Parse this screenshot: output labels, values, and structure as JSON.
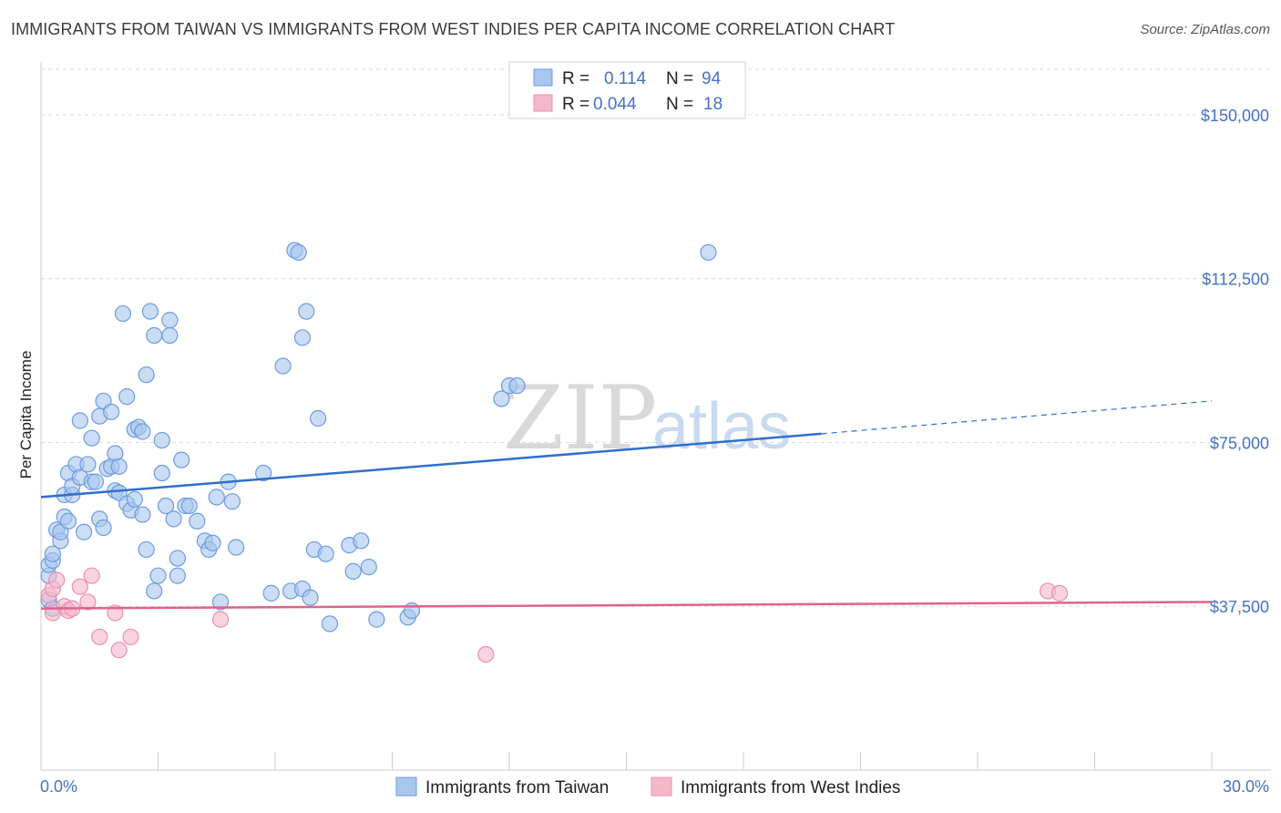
{
  "title": "IMMIGRANTS FROM TAIWAN VS IMMIGRANTS FROM WEST INDIES PER CAPITA INCOME CORRELATION CHART",
  "source": "Source: ZipAtlas.com",
  "watermark": {
    "zip": "ZIP",
    "atlas": "atlas"
  },
  "colors": {
    "taiwan_fill": "#a9c6ee",
    "taiwan_stroke": "#6c9be0",
    "taiwan_line": "#2e6fcf",
    "westindies_fill": "#f5b8cb",
    "westindies_stroke": "#ec8fad",
    "westindies_line": "#e0628a",
    "tick_text": "#4472c4",
    "grid": "#dcdcdc"
  },
  "legend": {
    "rows": [
      {
        "r_label": "R =",
        "r_value": "0.114",
        "n_label": "N =",
        "n_value": "94"
      },
      {
        "r_label": "R =",
        "r_value": "0.044",
        "n_label": "N =",
        "n_value": "18"
      }
    ]
  },
  "chart_data": {
    "type": "scatter",
    "title": "IMMIGRANTS FROM TAIWAN VS IMMIGRANTS FROM WEST INDIES PER CAPITA INCOME CORRELATION CHART",
    "xlabel": "",
    "ylabel": "Per Capita Income",
    "xlim": [
      0,
      30
    ],
    "ylim": [
      0,
      160000
    ],
    "x_tick_labels": [
      "0.0%",
      "30.0%"
    ],
    "y_ticks": [
      37500,
      75000,
      112500,
      150000
    ],
    "y_tick_labels": [
      "$37,500",
      "$75,000",
      "$112,500",
      "$150,000"
    ],
    "grid": "horizontal dashed",
    "legend_position": "top-center",
    "series": [
      {
        "name": "Immigrants from Taiwan",
        "r": 0.114,
        "n": 94,
        "trend": {
          "x0": 0,
          "y0": 62500,
          "x1": 20,
          "y1": 77000,
          "dashed_to_x": 30,
          "dashed_to_y": 84500
        },
        "points": [
          [
            0.2,
            39000
          ],
          [
            0.2,
            44500
          ],
          [
            0.2,
            47000
          ],
          [
            0.3,
            48000
          ],
          [
            0.3,
            49500
          ],
          [
            0.3,
            37000
          ],
          [
            0.4,
            55000
          ],
          [
            0.5,
            52500
          ],
          [
            0.5,
            54500
          ],
          [
            0.6,
            58000
          ],
          [
            0.6,
            63000
          ],
          [
            0.7,
            68000
          ],
          [
            0.7,
            57000
          ],
          [
            0.8,
            63000
          ],
          [
            0.8,
            65000
          ],
          [
            0.9,
            70000
          ],
          [
            1.0,
            67000
          ],
          [
            1.0,
            80000
          ],
          [
            1.1,
            54500
          ],
          [
            1.2,
            70000
          ],
          [
            1.3,
            76000
          ],
          [
            1.3,
            66000
          ],
          [
            1.4,
            66000
          ],
          [
            1.5,
            57500
          ],
          [
            1.5,
            81000
          ],
          [
            1.6,
            55500
          ],
          [
            1.6,
            84500
          ],
          [
            1.7,
            69000
          ],
          [
            1.8,
            82000
          ],
          [
            1.8,
            69500
          ],
          [
            1.9,
            72500
          ],
          [
            1.9,
            64000
          ],
          [
            2.0,
            69500
          ],
          [
            2.0,
            63500
          ],
          [
            2.1,
            104500
          ],
          [
            2.2,
            61000
          ],
          [
            2.2,
            85500
          ],
          [
            2.3,
            59500
          ],
          [
            2.4,
            62000
          ],
          [
            2.4,
            78000
          ],
          [
            2.5,
            78500
          ],
          [
            2.6,
            58500
          ],
          [
            2.6,
            77500
          ],
          [
            2.7,
            50500
          ],
          [
            2.7,
            90500
          ],
          [
            2.8,
            105000
          ],
          [
            2.9,
            41000
          ],
          [
            2.9,
            99500
          ],
          [
            3.0,
            44500
          ],
          [
            3.1,
            75500
          ],
          [
            3.1,
            68000
          ],
          [
            3.2,
            60500
          ],
          [
            3.3,
            99500
          ],
          [
            3.3,
            103000
          ],
          [
            3.4,
            57500
          ],
          [
            3.5,
            44500
          ],
          [
            3.5,
            48500
          ],
          [
            3.6,
            71000
          ],
          [
            3.7,
            60500
          ],
          [
            3.8,
            60500
          ],
          [
            4.0,
            57000
          ],
          [
            4.2,
            52500
          ],
          [
            4.3,
            50500
          ],
          [
            4.4,
            52000
          ],
          [
            4.5,
            62500
          ],
          [
            4.6,
            38500
          ],
          [
            4.8,
            66000
          ],
          [
            4.9,
            61500
          ],
          [
            5.0,
            51000
          ],
          [
            5.7,
            68000
          ],
          [
            5.9,
            40500
          ],
          [
            6.2,
            92500
          ],
          [
            6.4,
            41000
          ],
          [
            6.5,
            119000
          ],
          [
            6.6,
            118500
          ],
          [
            6.7,
            99000
          ],
          [
            6.7,
            41500
          ],
          [
            6.8,
            105000
          ],
          [
            6.9,
            39500
          ],
          [
            7.0,
            50500
          ],
          [
            7.1,
            80500
          ],
          [
            7.3,
            49500
          ],
          [
            7.4,
            33500
          ],
          [
            7.9,
            51500
          ],
          [
            8.0,
            45500
          ],
          [
            8.2,
            52500
          ],
          [
            8.4,
            46500
          ],
          [
            8.6,
            34500
          ],
          [
            9.4,
            35000
          ],
          [
            9.5,
            36500
          ],
          [
            11.8,
            85000
          ],
          [
            12.0,
            88000
          ],
          [
            12.2,
            88000
          ],
          [
            17.1,
            118500
          ]
        ]
      },
      {
        "name": "Immigrants from West Indies",
        "r": 0.044,
        "n": 18,
        "trend": {
          "x0": 0,
          "y0": 37000,
          "x1": 30,
          "y1": 38500
        },
        "points": [
          [
            0.2,
            40000
          ],
          [
            0.3,
            41500
          ],
          [
            0.3,
            36000
          ],
          [
            0.4,
            43500
          ],
          [
            0.6,
            37500
          ],
          [
            0.7,
            36500
          ],
          [
            0.8,
            37000
          ],
          [
            1.0,
            42000
          ],
          [
            1.2,
            38500
          ],
          [
            1.3,
            44500
          ],
          [
            1.5,
            30500
          ],
          [
            1.9,
            36000
          ],
          [
            2.0,
            27500
          ],
          [
            2.3,
            30500
          ],
          [
            4.6,
            34500
          ],
          [
            11.4,
            26500
          ],
          [
            25.8,
            41000
          ],
          [
            26.1,
            40500
          ]
        ]
      }
    ]
  }
}
